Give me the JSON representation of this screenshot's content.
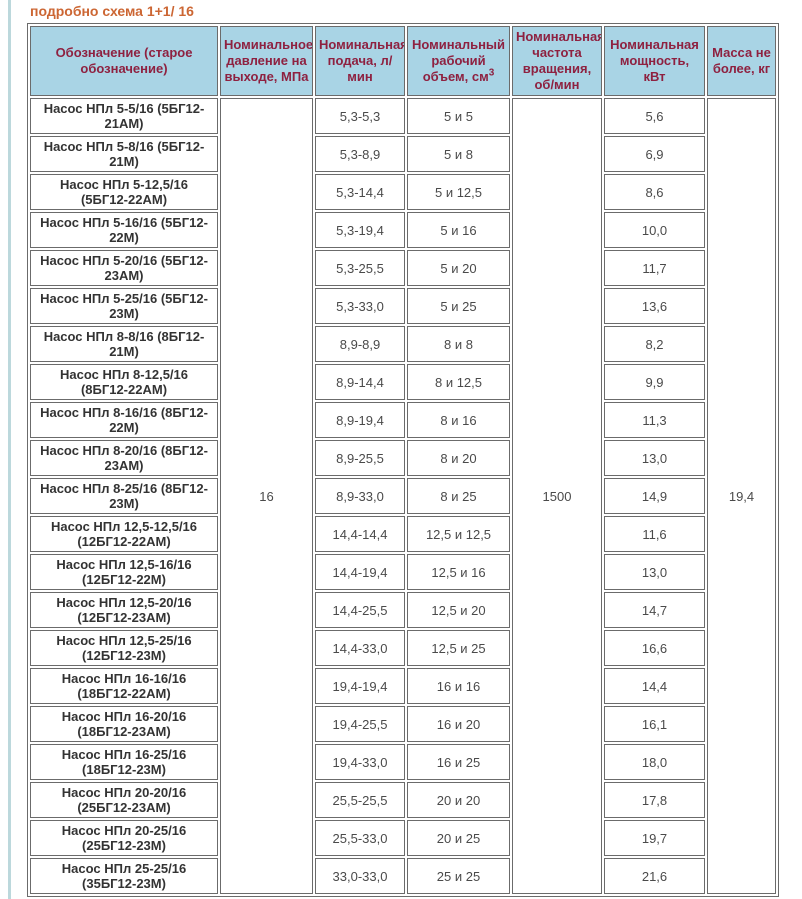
{
  "page": {
    "title": "подробно схема 1+1/ 16"
  },
  "colors": {
    "title_text": "#cc6633",
    "header_bg": "#a9d4e5",
    "header_text": "#8e2140",
    "cell_border": "#6b6b6b",
    "left_rule": "#bcd8dc"
  },
  "table": {
    "headers": [
      "Обозначение (старое обозначение)",
      "Номинальное давление на выходе, МПа",
      "Номинальная подача, л/ мин",
      "Номинальный рабочий объем, см",
      "Номинальная частота вращения, об/мин",
      "Номинальная мощность, кВт",
      "Масса не более, кг"
    ],
    "volume_unit_sup": "3",
    "merged": {
      "pressure": "16",
      "speed": "1500",
      "mass": "19,4"
    },
    "rows": [
      {
        "designation": "Насос НПл 5-5/16 (5БГ12-21АМ)",
        "flow": "5,3-5,3",
        "volume": "5 и 5",
        "power": "5,6"
      },
      {
        "designation": "Насос НПл 5-8/16 (5БГ12-21М)",
        "flow": "5,3-8,9",
        "volume": "5 и 8",
        "power": "6,9"
      },
      {
        "designation": "Насос НПл 5-12,5/16 (5БГ12-22АМ)",
        "flow": "5,3-14,4",
        "volume": "5 и 12,5",
        "power": "8,6"
      },
      {
        "designation": "Насос НПл 5-16/16 (5БГ12-22М)",
        "flow": "5,3-19,4",
        "volume": "5 и 16",
        "power": "10,0"
      },
      {
        "designation": "Насос НПл 5-20/16 (5БГ12-23АМ)",
        "flow": "5,3-25,5",
        "volume": "5 и 20",
        "power": "11,7"
      },
      {
        "designation": "Насос НПл 5-25/16 (5БГ12-23М)",
        "flow": "5,3-33,0",
        "volume": "5 и 25",
        "power": "13,6"
      },
      {
        "designation": "Насос НПл 8-8/16 (8БГ12-21М)",
        "flow": "8,9-8,9",
        "volume": "8 и 8",
        "power": "8,2"
      },
      {
        "designation": "Насос НПл 8-12,5/16 (8БГ12-22АМ)",
        "flow": "8,9-14,4",
        "volume": "8 и 12,5",
        "power": "9,9"
      },
      {
        "designation": "Насос НПл 8-16/16 (8БГ12-22М)",
        "flow": "8,9-19,4",
        "volume": "8 и 16",
        "power": "11,3"
      },
      {
        "designation": "Насос НПл 8-20/16 (8БГ12-23АМ)",
        "flow": "8,9-25,5",
        "volume": "8 и 20",
        "power": "13,0"
      },
      {
        "designation": "Насос НПл 8-25/16 (8БГ12-23М)",
        "flow": "8,9-33,0",
        "volume": "8 и 25",
        "power": "14,9"
      },
      {
        "designation": "Насос НПл 12,5-12,5/16 (12БГ12-22АМ)",
        "flow": "14,4-14,4",
        "volume": "12,5 и 12,5",
        "power": "11,6"
      },
      {
        "designation": "Насос НПл 12,5-16/16 (12БГ12-22М)",
        "flow": "14,4-19,4",
        "volume": "12,5 и 16",
        "power": "13,0"
      },
      {
        "designation": "Насос НПл 12,5-20/16 (12БГ12-23АМ)",
        "flow": "14,4-25,5",
        "volume": "12,5 и 20",
        "power": "14,7"
      },
      {
        "designation": "Насос НПл 12,5-25/16 (12БГ12-23М)",
        "flow": "14,4-33,0",
        "volume": "12,5 и 25",
        "power": "16,6"
      },
      {
        "designation": "Насос НПл 16-16/16 (18БГ12-22АМ)",
        "flow": "19,4-19,4",
        "volume": "16 и 16",
        "power": "14,4"
      },
      {
        "designation": "Насос НПл 16-20/16 (18БГ12-23АМ)",
        "flow": "19,4-25,5",
        "volume": "16 и 20",
        "power": "16,1"
      },
      {
        "designation": "Насос НПл 16-25/16 (18БГ12-23М)",
        "flow": "19,4-33,0",
        "volume": "16 и 25",
        "power": "18,0"
      },
      {
        "designation": "Насос НПл 20-20/16 (25БГ12-23АМ)",
        "flow": "25,5-25,5",
        "volume": "20 и 20",
        "power": "17,8"
      },
      {
        "designation": "Насос НПл 20-25/16 (25БГ12-23М)",
        "flow": "25,5-33,0",
        "volume": "20 и 25",
        "power": "19,7"
      },
      {
        "designation": "Насос НПл 25-25/16 (35БГ12-23М)",
        "flow": "33,0-33,0",
        "volume": "25 и 25",
        "power": "21,6"
      }
    ]
  }
}
